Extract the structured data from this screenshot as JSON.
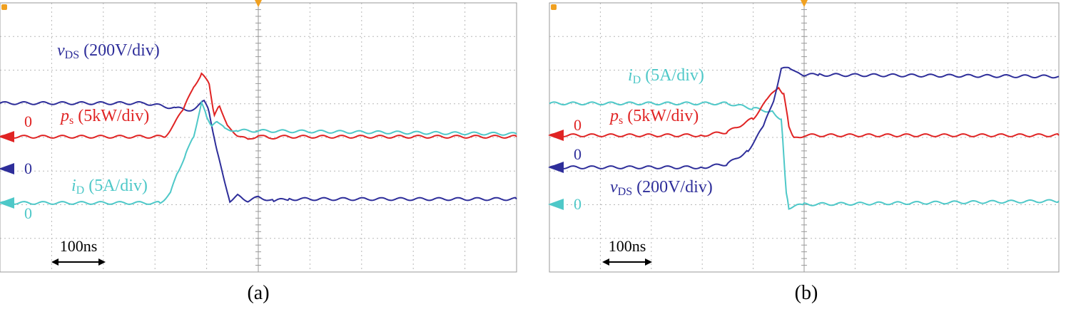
{
  "chart_data": [
    {
      "panel_label": "(a)",
      "type": "line",
      "time_scale_label": "100ns",
      "trigger_marker": "trigger-arrow-icon",
      "series": [
        {
          "name_main": "v",
          "name_sub": "DS",
          "scale": " (200V/div)",
          "zero_label": "0",
          "color": "#2e2e9a",
          "points": [
            [
              0,
              1.95
            ],
            [
              2.8,
              1.95
            ],
            [
              3.4,
              1.8
            ],
            [
              3.7,
              1.75
            ],
            [
              3.95,
              2.0
            ],
            [
              4.05,
              1.7
            ],
            [
              4.2,
              0.5
            ],
            [
              4.45,
              -0.95
            ],
            [
              4.6,
              -0.8
            ],
            [
              4.8,
              -0.95
            ],
            [
              5.0,
              -0.85
            ],
            [
              5.3,
              -0.95
            ],
            [
              5.6,
              -0.9
            ],
            [
              10,
              -0.9
            ]
          ]
        },
        {
          "name_main": "p",
          "name_sub": "s",
          "scale": " (5kW/div)",
          "zero_label": "0",
          "color": "#e02424",
          "points": [
            [
              0,
              0
            ],
            [
              3.2,
              0
            ],
            [
              3.55,
              0.8
            ],
            [
              3.75,
              1.5
            ],
            [
              3.9,
              1.85
            ],
            [
              4.05,
              1.6
            ],
            [
              4.15,
              0.6
            ],
            [
              4.25,
              0.95
            ],
            [
              4.4,
              0.3
            ],
            [
              4.6,
              0.05
            ],
            [
              4.8,
              -0.1
            ],
            [
              5.0,
              0.05
            ],
            [
              5.2,
              -0.05
            ],
            [
              5.4,
              0.0
            ],
            [
              10,
              0
            ]
          ]
        },
        {
          "name_main": "i",
          "name_sub": "D",
          "scale": " (5A/div)",
          "zero_label": "0",
          "color": "#4ec8c8",
          "points": [
            [
              0,
              0
            ],
            [
              3.1,
              0
            ],
            [
              3.3,
              0.3
            ],
            [
              3.45,
              0.95
            ],
            [
              3.6,
              1.45
            ],
            [
              3.75,
              2.0
            ],
            [
              3.9,
              2.95
            ],
            [
              4.0,
              2.6
            ],
            [
              4.1,
              2.25
            ],
            [
              4.2,
              2.45
            ],
            [
              4.35,
              2.2
            ],
            [
              4.6,
              2.15
            ],
            [
              10,
              2.05
            ]
          ]
        }
      ]
    },
    {
      "panel_label": "(b)",
      "type": "line",
      "time_scale_label": "100ns",
      "trigger_marker": "trigger-arrow-icon",
      "series": [
        {
          "name_main": "i",
          "name_sub": "D",
          "scale": " (5A/div)",
          "zero_label": "0",
          "color": "#4ec8c8",
          "points": [
            [
              0,
              3.0
            ],
            [
              3.5,
              3.0
            ],
            [
              4.0,
              2.85
            ],
            [
              4.4,
              2.75
            ],
            [
              4.55,
              2.5
            ],
            [
              4.6,
              1.5
            ],
            [
              4.65,
              0.3
            ],
            [
              4.7,
              -0.1
            ],
            [
              5.0,
              0.0
            ],
            [
              10,
              0.1
            ]
          ]
        },
        {
          "name_main": "p",
          "name_sub": "s",
          "scale": " (5kW/div)",
          "zero_label": "0",
          "color": "#e02424",
          "points": [
            [
              0,
              0
            ],
            [
              3.0,
              0
            ],
            [
              3.5,
              0.1
            ],
            [
              4.0,
              0.5
            ],
            [
              4.3,
              1.1
            ],
            [
              4.5,
              1.45
            ],
            [
              4.6,
              1.2
            ],
            [
              4.7,
              0.3
            ],
            [
              4.8,
              -0.1
            ],
            [
              5.0,
              0.0
            ],
            [
              10,
              0
            ]
          ]
        },
        {
          "name_main": "v",
          "name_sub": "DS",
          "scale": " (200V/div)",
          "zero_label": "0",
          "color": "#2e2e9a",
          "points": [
            [
              0,
              0
            ],
            [
              3.0,
              0
            ],
            [
              3.5,
              0.1
            ],
            [
              3.9,
              0.5
            ],
            [
              4.2,
              1.2
            ],
            [
              4.4,
              2.0
            ],
            [
              4.55,
              2.9
            ],
            [
              4.7,
              3.0
            ],
            [
              4.85,
              2.8
            ],
            [
              5.0,
              2.75
            ],
            [
              5.3,
              2.75
            ],
            [
              10,
              2.7
            ]
          ]
        }
      ]
    }
  ]
}
